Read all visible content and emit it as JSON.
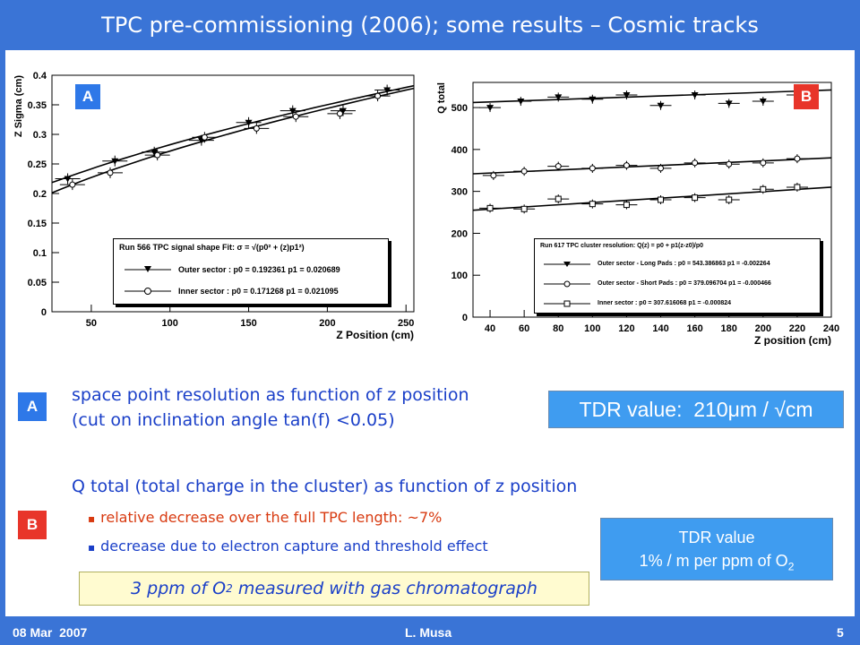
{
  "slide": {
    "title": "TPC pre-commissioning (2006); some results – Cosmic tracks",
    "date": "08 Mar  2007",
    "author": "L. Musa",
    "page_number": "5"
  },
  "colors": {
    "frame": "#3a74d6",
    "badge_red": "#e8352a",
    "badge_blue": "#2e78e8",
    "text_blue": "#1a3fc8",
    "text_red": "#d83a10",
    "tdr_box": "#3f9cf0",
    "gas_box": "#fffbd0"
  },
  "badges": {
    "a": "A",
    "b": "B"
  },
  "bullets": {
    "a_line1": "space point resolution as function of z position",
    "a_line2": "(cut on inclination angle tan(f) <0.05)",
    "b_heading": "Q total (total charge in the cluster) as function of z position",
    "b_item1": "relative decrease over the full TPC length: ~7%",
    "b_item2": "decrease due to electron capture and threshold effect",
    "bullet_glyph": "▪"
  },
  "tdr_value_a": {
    "prefix": "TDR value:  210",
    "mu": "μ",
    "suffix": "m / √cm"
  },
  "tdr_value_b": {
    "line1": "TDR value",
    "line2_prefix": "1% / m per ppm of O",
    "line2_sub": "2"
  },
  "gas_note": {
    "prefix": "3 ppm of O",
    "sub": "2",
    "suffix": " measured with gas chromatograph"
  },
  "chart_data": [
    {
      "type": "scatter",
      "panel_label": "A",
      "xlabel": "Z Position (cm)",
      "ylabel": "Z Sigma (cm)",
      "xlim": [
        25,
        255
      ],
      "ylim": [
        0,
        0.4
      ],
      "xticks": [
        "50",
        "100",
        "150",
        "200",
        "250"
      ],
      "yticks": [
        "0",
        "0.05",
        "0.1",
        "0.15",
        "0.2",
        "0.25",
        "0.3",
        "0.35",
        "0.4"
      ],
      "legend_title": "Run 566 TPC signal shape Fit: σ = √(p0² + (z)p1²)",
      "series": [
        {
          "name": "Outer sector : p0 = 0.192361 p1 = 0.020689",
          "marker": "triangle-down",
          "fit": {
            "p0": 0.192361,
            "p1": 0.020689
          },
          "x": [
            35,
            65,
            90,
            120,
            150,
            178,
            210,
            238
          ],
          "y": [
            0.225,
            0.255,
            0.27,
            0.29,
            0.32,
            0.34,
            0.34,
            0.375
          ]
        },
        {
          "name": "Inner sector : p0 = 0.171268 p1 = 0.021095",
          "marker": "circle-open",
          "fit": {
            "p0": 0.171268,
            "p1": 0.021095
          },
          "x": [
            38,
            62,
            92,
            122,
            155,
            180,
            208,
            232
          ],
          "y": [
            0.215,
            0.235,
            0.265,
            0.295,
            0.31,
            0.33,
            0.335,
            0.365
          ]
        }
      ]
    },
    {
      "type": "scatter",
      "panel_label": "B",
      "xlabel": "Z position (cm)",
      "ylabel": "Q total",
      "xlim": [
        30,
        240
      ],
      "ylim": [
        0,
        560
      ],
      "xticks": [
        "40",
        "60",
        "80",
        "100",
        "120",
        "140",
        "160",
        "180",
        "200",
        "220",
        "240"
      ],
      "yticks": [
        "0",
        "100",
        "200",
        "300",
        "400",
        "500"
      ],
      "legend_title": "Run 617 TPC cluster resolution: Q(z) = p0 + p1(z-z0)/p0",
      "series": [
        {
          "name": "Outer sector - Long Pads : p0 = 543.386863 p1 = -0.002264",
          "marker": "triangle-down",
          "x": [
            40,
            58,
            80,
            100,
            120,
            140,
            160,
            180,
            200,
            220
          ],
          "y": [
            500,
            515,
            525,
            520,
            530,
            505,
            530,
            510,
            515,
            530
          ]
        },
        {
          "name": "Outer sector - Short Pads : p0 = 379.096704 p1 = -0.000466",
          "marker": "circle-open",
          "x": [
            42,
            60,
            80,
            100,
            120,
            140,
            160,
            180,
            200,
            220
          ],
          "y": [
            338,
            348,
            360,
            355,
            362,
            355,
            368,
            365,
            368,
            378
          ]
        },
        {
          "name": "Inner sector : p0 = 307.616068 p1 = -0.000824",
          "marker": "square-open",
          "x": [
            40,
            60,
            80,
            100,
            120,
            140,
            160,
            180,
            200,
            220
          ],
          "y": [
            260,
            258,
            282,
            270,
            268,
            280,
            285,
            280,
            305,
            310
          ]
        }
      ],
      "fit_lines": [
        {
          "y_start": 512,
          "y_end": 542
        },
        {
          "y_start": 342,
          "y_end": 380
        },
        {
          "y_start": 255,
          "y_end": 310
        }
      ]
    }
  ]
}
